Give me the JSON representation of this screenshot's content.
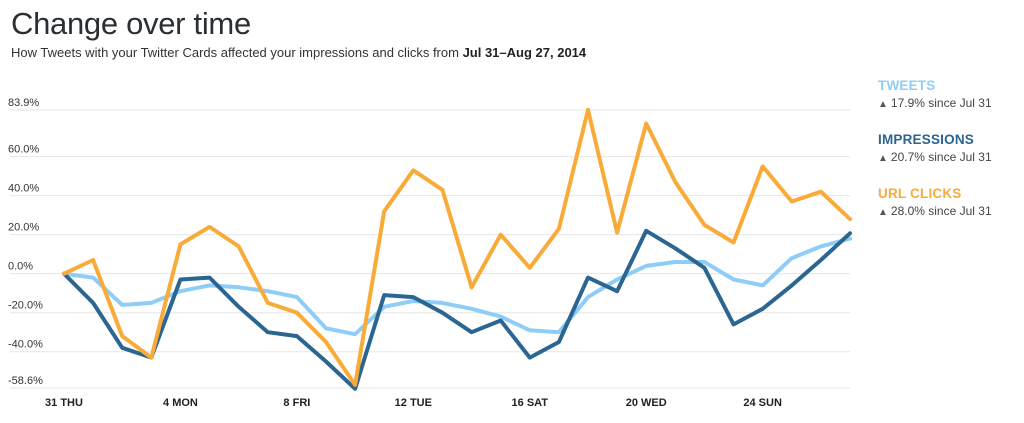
{
  "title": "Change over time",
  "subtitle_prefix": "How Tweets with your Twitter Cards affected your impressions and clicks from ",
  "subtitle_range": "Jul 31–Aug 27, 2014",
  "legend": [
    {
      "name": "TWEETS",
      "color": "#8ecdf7",
      "arrow": "▲",
      "change": "17.9% since Jul 31"
    },
    {
      "name": "IMPRESSIONS",
      "color": "#2b6591",
      "arrow": "▲",
      "change": "20.7% since Jul 31"
    },
    {
      "name": "URL CLICKS",
      "color": "#f9ab3a",
      "arrow": "▲",
      "change": "28.0% since Jul 31"
    }
  ],
  "chart_data": {
    "type": "line",
    "title": "Change over time",
    "xlabel": "",
    "ylabel": "",
    "x_range": [
      0,
      27
    ],
    "x_tick_labels": [
      {
        "day": 0,
        "label": "31 THU"
      },
      {
        "day": 4,
        "label": "4 MON"
      },
      {
        "day": 8,
        "label": "8 FRI"
      },
      {
        "day": 12,
        "label": "12 TUE"
      },
      {
        "day": 16,
        "label": "16 SAT"
      },
      {
        "day": 20,
        "label": "20 WED"
      },
      {
        "day": 24,
        "label": "24 SUN"
      }
    ],
    "ylim": [
      -58.6,
      83.9
    ],
    "y_ticks": [
      {
        "value": 83.9,
        "label": "83.9%"
      },
      {
        "value": 60,
        "label": "60.0%"
      },
      {
        "value": 40,
        "label": "40.0%"
      },
      {
        "value": 20,
        "label": "20.0%"
      },
      {
        "value": 0,
        "label": "0.0%"
      },
      {
        "value": -20,
        "label": "-20.0%"
      },
      {
        "value": -40,
        "label": "-40.0%"
      },
      {
        "value": -58.6,
        "label": "-58.6%"
      }
    ],
    "grid": true,
    "legend_position": "right",
    "series": [
      {
        "name": "TWEETS",
        "color": "#8ecdf7",
        "values": [
          0,
          -2,
          -16,
          -15,
          -9,
          -6,
          -7,
          -9,
          -12,
          -28,
          -31,
          -17,
          -14,
          -15,
          -18,
          -22,
          -29,
          -30,
          -12,
          -3,
          4,
          6,
          6,
          -3,
          -6,
          8,
          14,
          18
        ]
      },
      {
        "name": "IMPRESSIONS",
        "color": "#2b6591",
        "values": [
          0,
          -15,
          -38,
          -43,
          -3,
          -2,
          -17,
          -30,
          -32,
          -45,
          -59,
          -11,
          -12,
          -20,
          -30,
          -24,
          -43,
          -35,
          -2,
          -9,
          22,
          13,
          3,
          -26,
          -18,
          -6,
          7,
          20.7
        ]
      },
      {
        "name": "URL CLICKS",
        "color": "#f9ab3a",
        "values": [
          0,
          7,
          -32,
          -43,
          15,
          24,
          14,
          -15,
          -20,
          -35,
          -57,
          32,
          53,
          43,
          -7,
          20,
          3,
          23,
          84,
          21,
          77,
          47,
          25,
          16,
          55,
          37,
          42,
          28
        ]
      }
    ]
  }
}
